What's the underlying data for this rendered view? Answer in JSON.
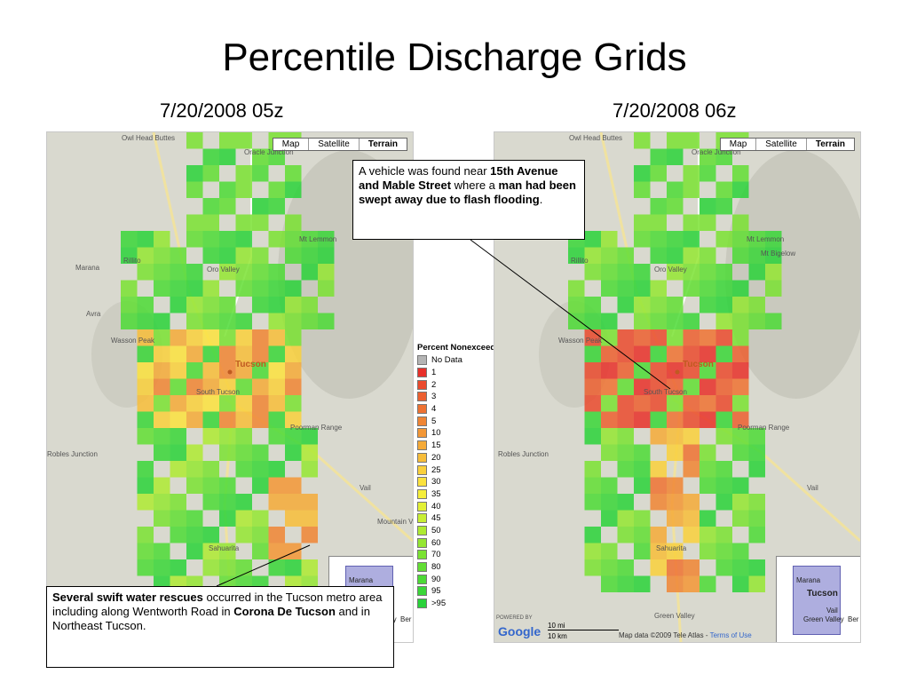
{
  "title": "Percentile Discharge Grids",
  "maps": [
    {
      "time": "7/20/2008 05z"
    },
    {
      "time": "7/20/2008 06z"
    }
  ],
  "map_controls": [
    "Map",
    "Satellite",
    "Terrain"
  ],
  "places": {
    "owl_head_buttes": "Owl Head Buttes",
    "oracle_junction": "Oracle Junction",
    "oracle": "Oracle",
    "mt_lemmon": "Mt Lemmon",
    "mt_bigelow": "Mt Bigelow",
    "marana": "Marana",
    "rillito": "Rillito",
    "oro_valley": "Oro Valley",
    "avra": "Avra",
    "wasson_peak": "Wasson Peak",
    "tucson": "Tucson",
    "south_tucson": "South Tucson",
    "poorman_range": "Poorman Range",
    "vail": "Vail",
    "mountain_view": "Mountain View",
    "sahuarita": "Sahuarita",
    "green_valley": "Green Valley",
    "robles_junction": "Robles Junction"
  },
  "inset_labels": [
    "Marana",
    "Tucson",
    "Vail",
    "Green Valley",
    "Ber"
  ],
  "scale": {
    "mi": "10 mi",
    "km": "10 km"
  },
  "google_logo": "Google",
  "powered_by": "POWERED BY",
  "attribution": "Map data ©2009 Tele Atlas - ",
  "terms": "Terms of Use",
  "legend": {
    "title": "Percent Nonexceedance",
    "items": [
      {
        "label": "No Data",
        "color": "#b4b4b4"
      },
      {
        "label": "1",
        "color": "#e8302a"
      },
      {
        "label": "2",
        "color": "#ea4a2e"
      },
      {
        "label": "3",
        "color": "#ec5f30"
      },
      {
        "label": "4",
        "color": "#ee7232"
      },
      {
        "label": "5",
        "color": "#f08534"
      },
      {
        "label": "10",
        "color": "#f39736"
      },
      {
        "label": "15",
        "color": "#f5aa38"
      },
      {
        "label": "20",
        "color": "#f7bd3a"
      },
      {
        "label": "25",
        "color": "#f9d03c"
      },
      {
        "label": "30",
        "color": "#fbe23e"
      },
      {
        "label": "35",
        "color": "#f5ee3a"
      },
      {
        "label": "40",
        "color": "#e2f036"
      },
      {
        "label": "45",
        "color": "#c8ee34"
      },
      {
        "label": "50",
        "color": "#aeea32"
      },
      {
        "label": "60",
        "color": "#94e632"
      },
      {
        "label": "70",
        "color": "#7ae232"
      },
      {
        "label": "80",
        "color": "#62de34"
      },
      {
        "label": "90",
        "color": "#4cda36"
      },
      {
        "label": "95",
        "color": "#3ad638"
      },
      {
        "label": ">95",
        "color": "#2ad23a"
      }
    ]
  },
  "callouts": {
    "left": {
      "b1": "Several swift water rescues",
      "t1": " occurred in the Tucson metro area including along Wentworth Road in ",
      "b2": "Corona De Tucson",
      "t2": " and in Northeast Tucson."
    },
    "right": {
      "t1": "A vehicle was found near ",
      "b1": "15th Avenue and Mable Street",
      "t2": " where a ",
      "b2": "man had been swept away due to flash flooding",
      "t3": "."
    }
  },
  "chart_data": [
    {
      "type": "heatmap",
      "title": "7/20/2008 05z",
      "legend_title": "Percent Nonexceedance",
      "levels": [
        "No Data",
        "1",
        "2",
        "3",
        "4",
        "5",
        "10",
        "15",
        "20",
        "25",
        "30",
        "35",
        "40",
        "45",
        "50",
        "60",
        "70",
        "80",
        "90",
        "95",
        ">95"
      ]
    },
    {
      "type": "heatmap",
      "title": "7/20/2008 06z",
      "legend_title": "Percent Nonexceedance",
      "levels": [
        "No Data",
        "1",
        "2",
        "3",
        "4",
        "5",
        "10",
        "15",
        "20",
        "25",
        "30",
        "35",
        "40",
        "45",
        "50",
        "60",
        "70",
        "80",
        "90",
        "95",
        ">95"
      ]
    }
  ]
}
